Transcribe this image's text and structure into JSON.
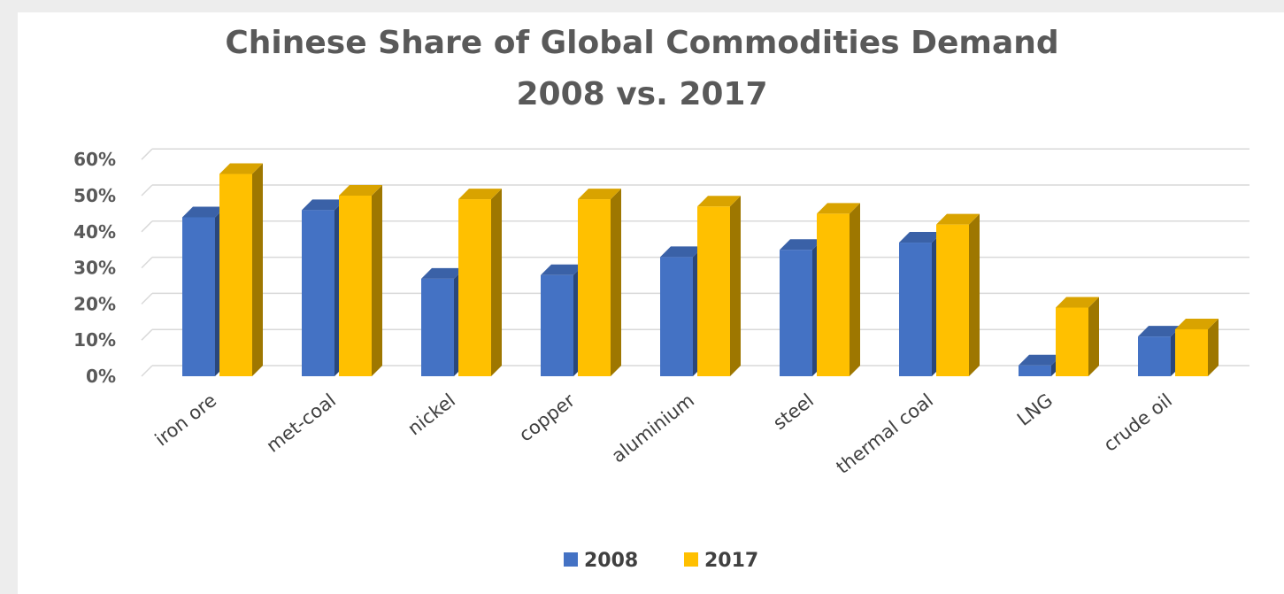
{
  "chart_data": {
    "type": "bar",
    "title": "Chinese Share of Global Commodities Demand",
    "subtitle": "2008 vs. 2017",
    "xlabel": "",
    "ylabel": "",
    "ylim": [
      0,
      60
    ],
    "yticks": [
      "0%",
      "10%",
      "20%",
      "30%",
      "40%",
      "50%",
      "60%"
    ],
    "ytick_values": [
      0,
      10,
      20,
      30,
      40,
      50,
      60
    ],
    "grid": true,
    "legend_position": "bottom",
    "style": "3d-clustered-column",
    "categories": [
      "iron ore",
      "met-coal",
      "nickel",
      "copper",
      "aluminium",
      "steel",
      "thermal coal",
      "LNG",
      "crude oil"
    ],
    "series": [
      {
        "name": "2008",
        "color": "#4472c4",
        "values": [
          44,
          46,
          27,
          28,
          33,
          35,
          37,
          3,
          11
        ]
      },
      {
        "name": "2017",
        "color": "#ffc000",
        "values": [
          56,
          50,
          49,
          49,
          47,
          45,
          42,
          19,
          13
        ]
      }
    ]
  }
}
